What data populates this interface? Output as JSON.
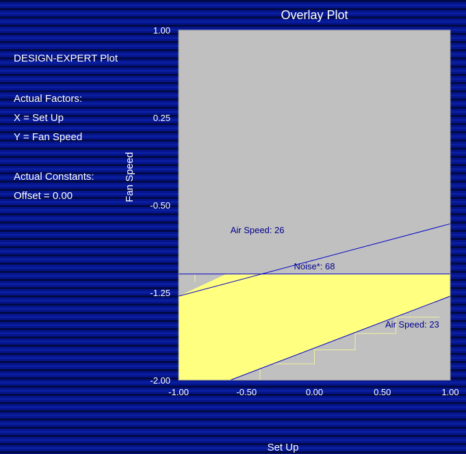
{
  "info_panel": {
    "header": "DESIGN-EXPERT Plot",
    "factors_title": "Actual Factors:",
    "factor_x": "X = Set Up",
    "factor_y": "Y = Fan Speed",
    "constants_title": "Actual Constants:",
    "constant_offset": "Offset = 0.00"
  },
  "colors": {
    "plot_background": "#c0c0c0",
    "feasible_region": "#ffff80",
    "contour_line": "#0000c8",
    "contour_label": "#00008b",
    "page_background": "#000a66"
  },
  "chart_data": {
    "type": "overlay-contour",
    "title": "Overlay Plot",
    "xlabel": "Set Up",
    "ylabel": "Fan Speed",
    "xlim": [
      -1.0,
      1.0
    ],
    "ylim": [
      -2.0,
      1.0
    ],
    "x_ticks": [
      -1.0,
      -0.5,
      0.0,
      0.5,
      1.0
    ],
    "x_tick_labels": [
      "-1.00",
      "-0.50",
      "0.00",
      "0.50",
      "1.00"
    ],
    "y_ticks": [
      -2.0,
      -1.25,
      -0.5,
      0.25,
      1.0
    ],
    "y_tick_labels": [
      "-2.00",
      "-1.25",
      "-0.50",
      "0.25",
      "1.00"
    ],
    "contours": [
      {
        "label": "Air Speed: 26",
        "points": [
          [
            -1.0,
            -1.28
          ],
          [
            1.0,
            -0.66
          ]
        ],
        "label_at": [
          -0.42,
          -0.74
        ]
      },
      {
        "label": "Noise*: 68",
        "points": [
          [
            -1.0,
            -1.09
          ],
          [
            1.0,
            -1.09
          ]
        ],
        "label_at": [
          0.0,
          -1.05
        ]
      },
      {
        "label": "Air Speed: 23",
        "points": [
          [
            -0.62,
            -2.0
          ],
          [
            1.0,
            -1.28
          ]
        ],
        "label_at": [
          0.72,
          -1.55
        ]
      }
    ],
    "feasible_region": [
      [
        -1.0,
        -1.28
      ],
      [
        -0.65,
        -1.09
      ],
      [
        1.0,
        -1.09
      ],
      [
        1.0,
        -1.28
      ],
      [
        -0.62,
        -2.0
      ],
      [
        -1.0,
        -2.0
      ]
    ],
    "grid": false,
    "legend": "none"
  }
}
